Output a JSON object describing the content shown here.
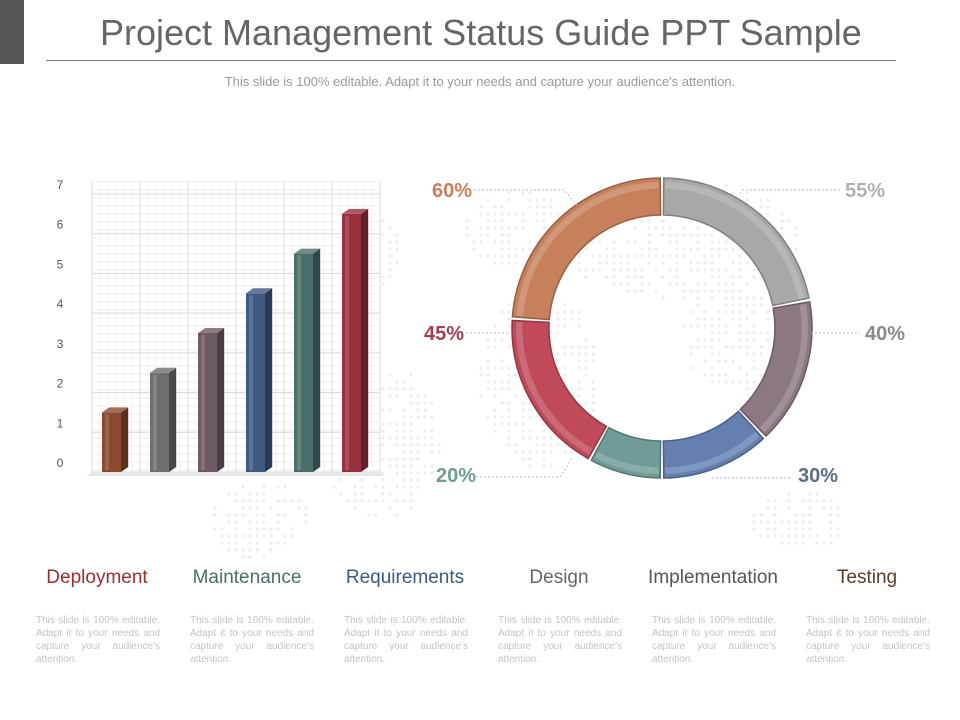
{
  "header": {
    "title": "Project Management Status Guide PPT Sample",
    "subtitle": "This slide is 100% editable. Adapt it to your needs and capture your audience's attention."
  },
  "chart_data": [
    {
      "type": "bar",
      "categories": [
        "Deployment",
        "Maintenance",
        "Requirements",
        "Design",
        "Implementation",
        "Testing"
      ],
      "values": [
        1.5,
        2.5,
        3.5,
        4.5,
        5.5,
        6.5
      ],
      "yticks": [
        0,
        1,
        2,
        3,
        4,
        5,
        6,
        7
      ],
      "ylim": [
        0,
        7
      ],
      "grid": true,
      "colors": [
        "#8b4a2e",
        "#6e6e6e",
        "#6e5a64",
        "#3d5a80",
        "#4a6e6a",
        "#9a2f40"
      ]
    },
    {
      "type": "pie",
      "style": "donut",
      "segments": [
        {
          "label": "55%",
          "value": 55,
          "color": "#a8a8a8",
          "label_color": "#b0b0b0"
        },
        {
          "label": "40%",
          "value": 40,
          "color": "#8c7884",
          "label_color": "#8a8a8a"
        },
        {
          "label": "30%",
          "value": 30,
          "color": "#6580b0",
          "label_color": "#5a6e86"
        },
        {
          "label": "20%",
          "value": 20,
          "color": "#6f9c96",
          "label_color": "#6e9c96"
        },
        {
          "label": "45%",
          "value": 45,
          "color": "#c04a5a",
          "label_color": "#a04050"
        },
        {
          "label": "60%",
          "value": 60,
          "color": "#c7805c",
          "label_color": "#c7805c"
        }
      ]
    }
  ],
  "categories": [
    {
      "name": "Deployment",
      "color": "#9a2f2f",
      "desc": "This slide is 100% editable. Adapt it to your needs and capture your audience's attention."
    },
    {
      "name": "Maintenance",
      "color": "#4a6e6a",
      "desc": "This slide is 100% editable. Adapt it to your needs and capture your audience's attention."
    },
    {
      "name": "Requirements",
      "color": "#3d5a80",
      "desc": "This slide is 100% editable. Adapt it to your needs and capture your audience's attention."
    },
    {
      "name": "Design",
      "color": "#666666",
      "desc": "This slide is 100% editable. Adapt it to your needs and capture your audience's attention."
    },
    {
      "name": "Implementation",
      "color": "#555555",
      "desc": "This slide is 100% editable. Adapt it to your needs and capture your audience's attention."
    },
    {
      "name": "Testing",
      "color": "#5a3a2e",
      "desc": "This slide is 100% editable. Adapt it to your needs and capture your audience's attention."
    }
  ]
}
